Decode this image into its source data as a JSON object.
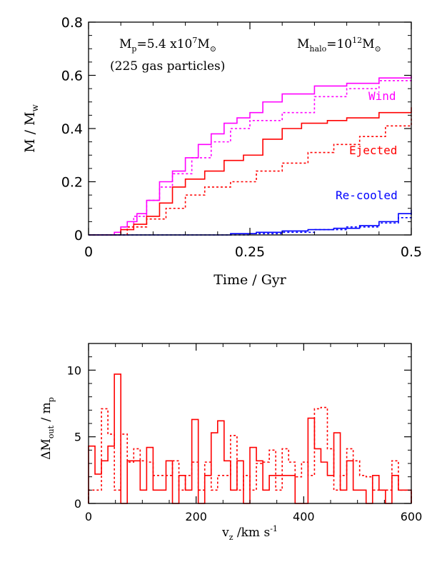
{
  "chart_data": [
    {
      "type": "line",
      "xlabel": "Time / Gyr",
      "ylabel": "M / M",
      "ylabel_sub": "w",
      "xlim": [
        0,
        0.5
      ],
      "ylim": [
        0,
        0.8
      ],
      "x_ticks": [
        "0",
        "0.25",
        "0.5"
      ],
      "y_ticks": [
        "0",
        "0.2",
        "0.4",
        "0.6",
        "0.8"
      ],
      "annotations": {
        "mp_prefix": "M",
        "mp_sub": "p",
        "mp_value": "=5.4 x10",
        "mp_exp": "7",
        "mp_unit": "M",
        "mp_unit_sub": "⊙",
        "particles": "(225 gas particles)",
        "halo_prefix": "M",
        "halo_sub": "halo",
        "halo_eq": "=10",
        "halo_exp": "12",
        "halo_unit": "M",
        "halo_unit_sub": "⊙"
      },
      "series": [
        {
          "name": "Wind",
          "color": "#ff00ff",
          "style": "solid",
          "x": [
            0,
            0.03,
            0.04,
            0.05,
            0.06,
            0.075,
            0.09,
            0.11,
            0.13,
            0.15,
            0.17,
            0.19,
            0.21,
            0.23,
            0.25,
            0.27,
            0.3,
            0.35,
            0.4,
            0.45,
            0.5
          ],
          "y": [
            0,
            0,
            0.01,
            0.03,
            0.05,
            0.08,
            0.13,
            0.2,
            0.24,
            0.29,
            0.34,
            0.38,
            0.42,
            0.44,
            0.46,
            0.5,
            0.53,
            0.56,
            0.57,
            0.59,
            0.6
          ]
        },
        {
          "name": "",
          "color": "#ff00ff",
          "style": "dotted",
          "x": [
            0,
            0.03,
            0.05,
            0.07,
            0.09,
            0.11,
            0.13,
            0.16,
            0.19,
            0.22,
            0.25,
            0.3,
            0.35,
            0.4,
            0.45,
            0.5
          ],
          "y": [
            0,
            0,
            0.03,
            0.07,
            0.13,
            0.18,
            0.23,
            0.29,
            0.35,
            0.4,
            0.43,
            0.46,
            0.52,
            0.55,
            0.58,
            0.59
          ]
        },
        {
          "name": "Ejected",
          "color": "#ff0000",
          "style": "solid",
          "x": [
            0,
            0.03,
            0.05,
            0.07,
            0.09,
            0.11,
            0.13,
            0.15,
            0.18,
            0.21,
            0.24,
            0.27,
            0.3,
            0.33,
            0.37,
            0.4,
            0.45,
            0.5
          ],
          "y": [
            0,
            0,
            0.02,
            0.04,
            0.07,
            0.12,
            0.18,
            0.21,
            0.24,
            0.28,
            0.3,
            0.36,
            0.4,
            0.42,
            0.43,
            0.44,
            0.46,
            0.48
          ]
        },
        {
          "name": "",
          "color": "#ff0000",
          "style": "dotted",
          "x": [
            0,
            0.03,
            0.06,
            0.09,
            0.12,
            0.15,
            0.18,
            0.22,
            0.26,
            0.3,
            0.34,
            0.38,
            0.42,
            0.46,
            0.5
          ],
          "y": [
            0,
            0,
            0.03,
            0.06,
            0.1,
            0.15,
            0.18,
            0.2,
            0.24,
            0.27,
            0.31,
            0.34,
            0.37,
            0.41,
            0.45
          ]
        },
        {
          "name": "Re-cooled",
          "color": "#0000ff",
          "style": "solid",
          "x": [
            0,
            0.18,
            0.22,
            0.26,
            0.3,
            0.34,
            0.38,
            0.42,
            0.45,
            0.48,
            0.5
          ],
          "y": [
            0,
            0,
            0.005,
            0.01,
            0.015,
            0.02,
            0.025,
            0.035,
            0.05,
            0.08,
            0.095
          ]
        },
        {
          "name": "",
          "color": "#0000ff",
          "style": "dotted",
          "x": [
            0,
            0.2,
            0.25,
            0.3,
            0.35,
            0.4,
            0.45,
            0.48,
            0.5
          ],
          "y": [
            0,
            0,
            0.005,
            0.01,
            0.02,
            0.03,
            0.045,
            0.065,
            0.085
          ]
        }
      ]
    },
    {
      "type": "bar",
      "xlabel_prefix": "v",
      "xlabel_sub": "z",
      "xlabel_rest": " /km s",
      "xlabel_exp": "-1",
      "ylabel_prefix": "ΔM",
      "ylabel_sub": "out",
      "ylabel_rest": " / m",
      "ylabel_sub2": "p",
      "xlim": [
        0,
        600
      ],
      "ylim": [
        0,
        12
      ],
      "x_ticks": [
        "0",
        "200",
        "400",
        "600"
      ],
      "y_ticks": [
        "0",
        "5",
        "10"
      ],
      "bin_width": 12,
      "series": [
        {
          "name": "",
          "color": "#ff0000",
          "style": "solid",
          "values": [
            4.3,
            2.2,
            3.2,
            4.3,
            9.7,
            0,
            3.2,
            3.2,
            1,
            4.2,
            1,
            1,
            3.2,
            0,
            2.1,
            1,
            6.3,
            0,
            2.1,
            5.3,
            6.2,
            3.2,
            1,
            3.2,
            0,
            4.2,
            3.2,
            1,
            2.1,
            2.1,
            2.1,
            2.1,
            0,
            0,
            6.4,
            4.1,
            3.1,
            2.1,
            5.3,
            1,
            3.2,
            1,
            1,
            0,
            2.1,
            1,
            0,
            2.1,
            1,
            1
          ]
        },
        {
          "name": "",
          "color": "#ff0000",
          "style": "dotted",
          "values": [
            1,
            1,
            7.1,
            5.2,
            1,
            5.2,
            3.1,
            4.1,
            3.2,
            3.1,
            2.1,
            2.1,
            2.1,
            3.2,
            1,
            2.1,
            3.1,
            1,
            3.1,
            1,
            2.1,
            2.1,
            5.1,
            1,
            2.1,
            1,
            3,
            3.1,
            4,
            1,
            4.1,
            3.1,
            2,
            3.1,
            2.1,
            7.1,
            7.2,
            4.1,
            1,
            2.1,
            4.1,
            3.2,
            2.1,
            2,
            1,
            1,
            1,
            3.2,
            1,
            1
          ]
        }
      ]
    }
  ]
}
